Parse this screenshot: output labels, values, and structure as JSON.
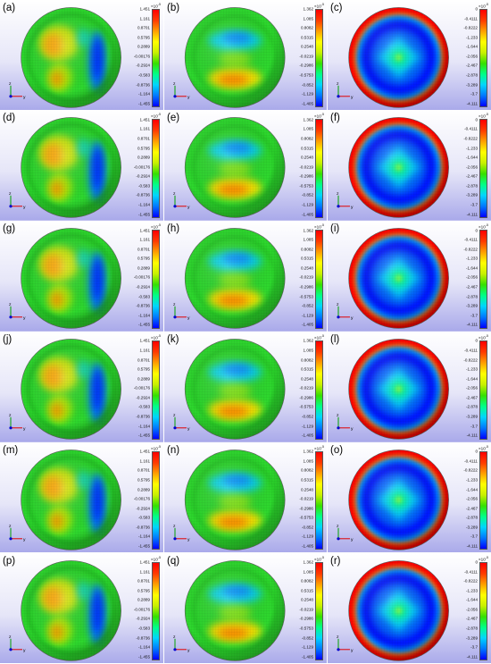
{
  "colormap": [
    "#0000ff",
    "#0078ff",
    "#00d4ff",
    "#00ff88",
    "#36e000",
    "#c8f000",
    "#ffff00",
    "#ffa000",
    "#ff3c00",
    "#ff0000"
  ],
  "columns": [
    {
      "exponent_base": "×10",
      "exponent_power": "-5",
      "ticks": [
        "1.451",
        "1.161",
        "0.8701",
        "0.5795",
        "0.2889",
        "-0.00176",
        "-0.2924",
        "-0.583",
        "-0.8736",
        "-1.164",
        "-1.455"
      ],
      "pattern": "a"
    },
    {
      "exponent_base": "×10",
      "exponent_power": "-5",
      "ticks": [
        "1.362",
        "1.085",
        "0.8082",
        "0.5315",
        "0.2548",
        "-0.0219",
        "-0.2986",
        "-0.5753",
        "-0.852",
        "-1.129",
        "-1.405"
      ],
      "pattern": "b"
    },
    {
      "exponent_base": "×10",
      "exponent_power": "-5",
      "ticks": [
        "0",
        "-0.4111",
        "-0.8222",
        "-1.233",
        "-1.644",
        "-2.056",
        "-2.467",
        "-2.878",
        "-3.289",
        "-3.7",
        "-4.111"
      ],
      "pattern": "c"
    }
  ],
  "rows": [
    {
      "labels": [
        "(a)",
        "(b)",
        "(c)"
      ]
    },
    {
      "labels": [
        "(d)",
        "(e)",
        "(f)"
      ]
    },
    {
      "labels": [
        "(g)",
        "(h)",
        "(i)"
      ]
    },
    {
      "labels": [
        "(j)",
        "(k)",
        "(l)"
      ]
    },
    {
      "labels": [
        "(m)",
        "(n)",
        "(o)"
      ]
    },
    {
      "labels": [
        "(p)",
        "(q)",
        "(r)"
      ]
    }
  ],
  "axis_labels": {
    "y": "y",
    "z": "z"
  }
}
